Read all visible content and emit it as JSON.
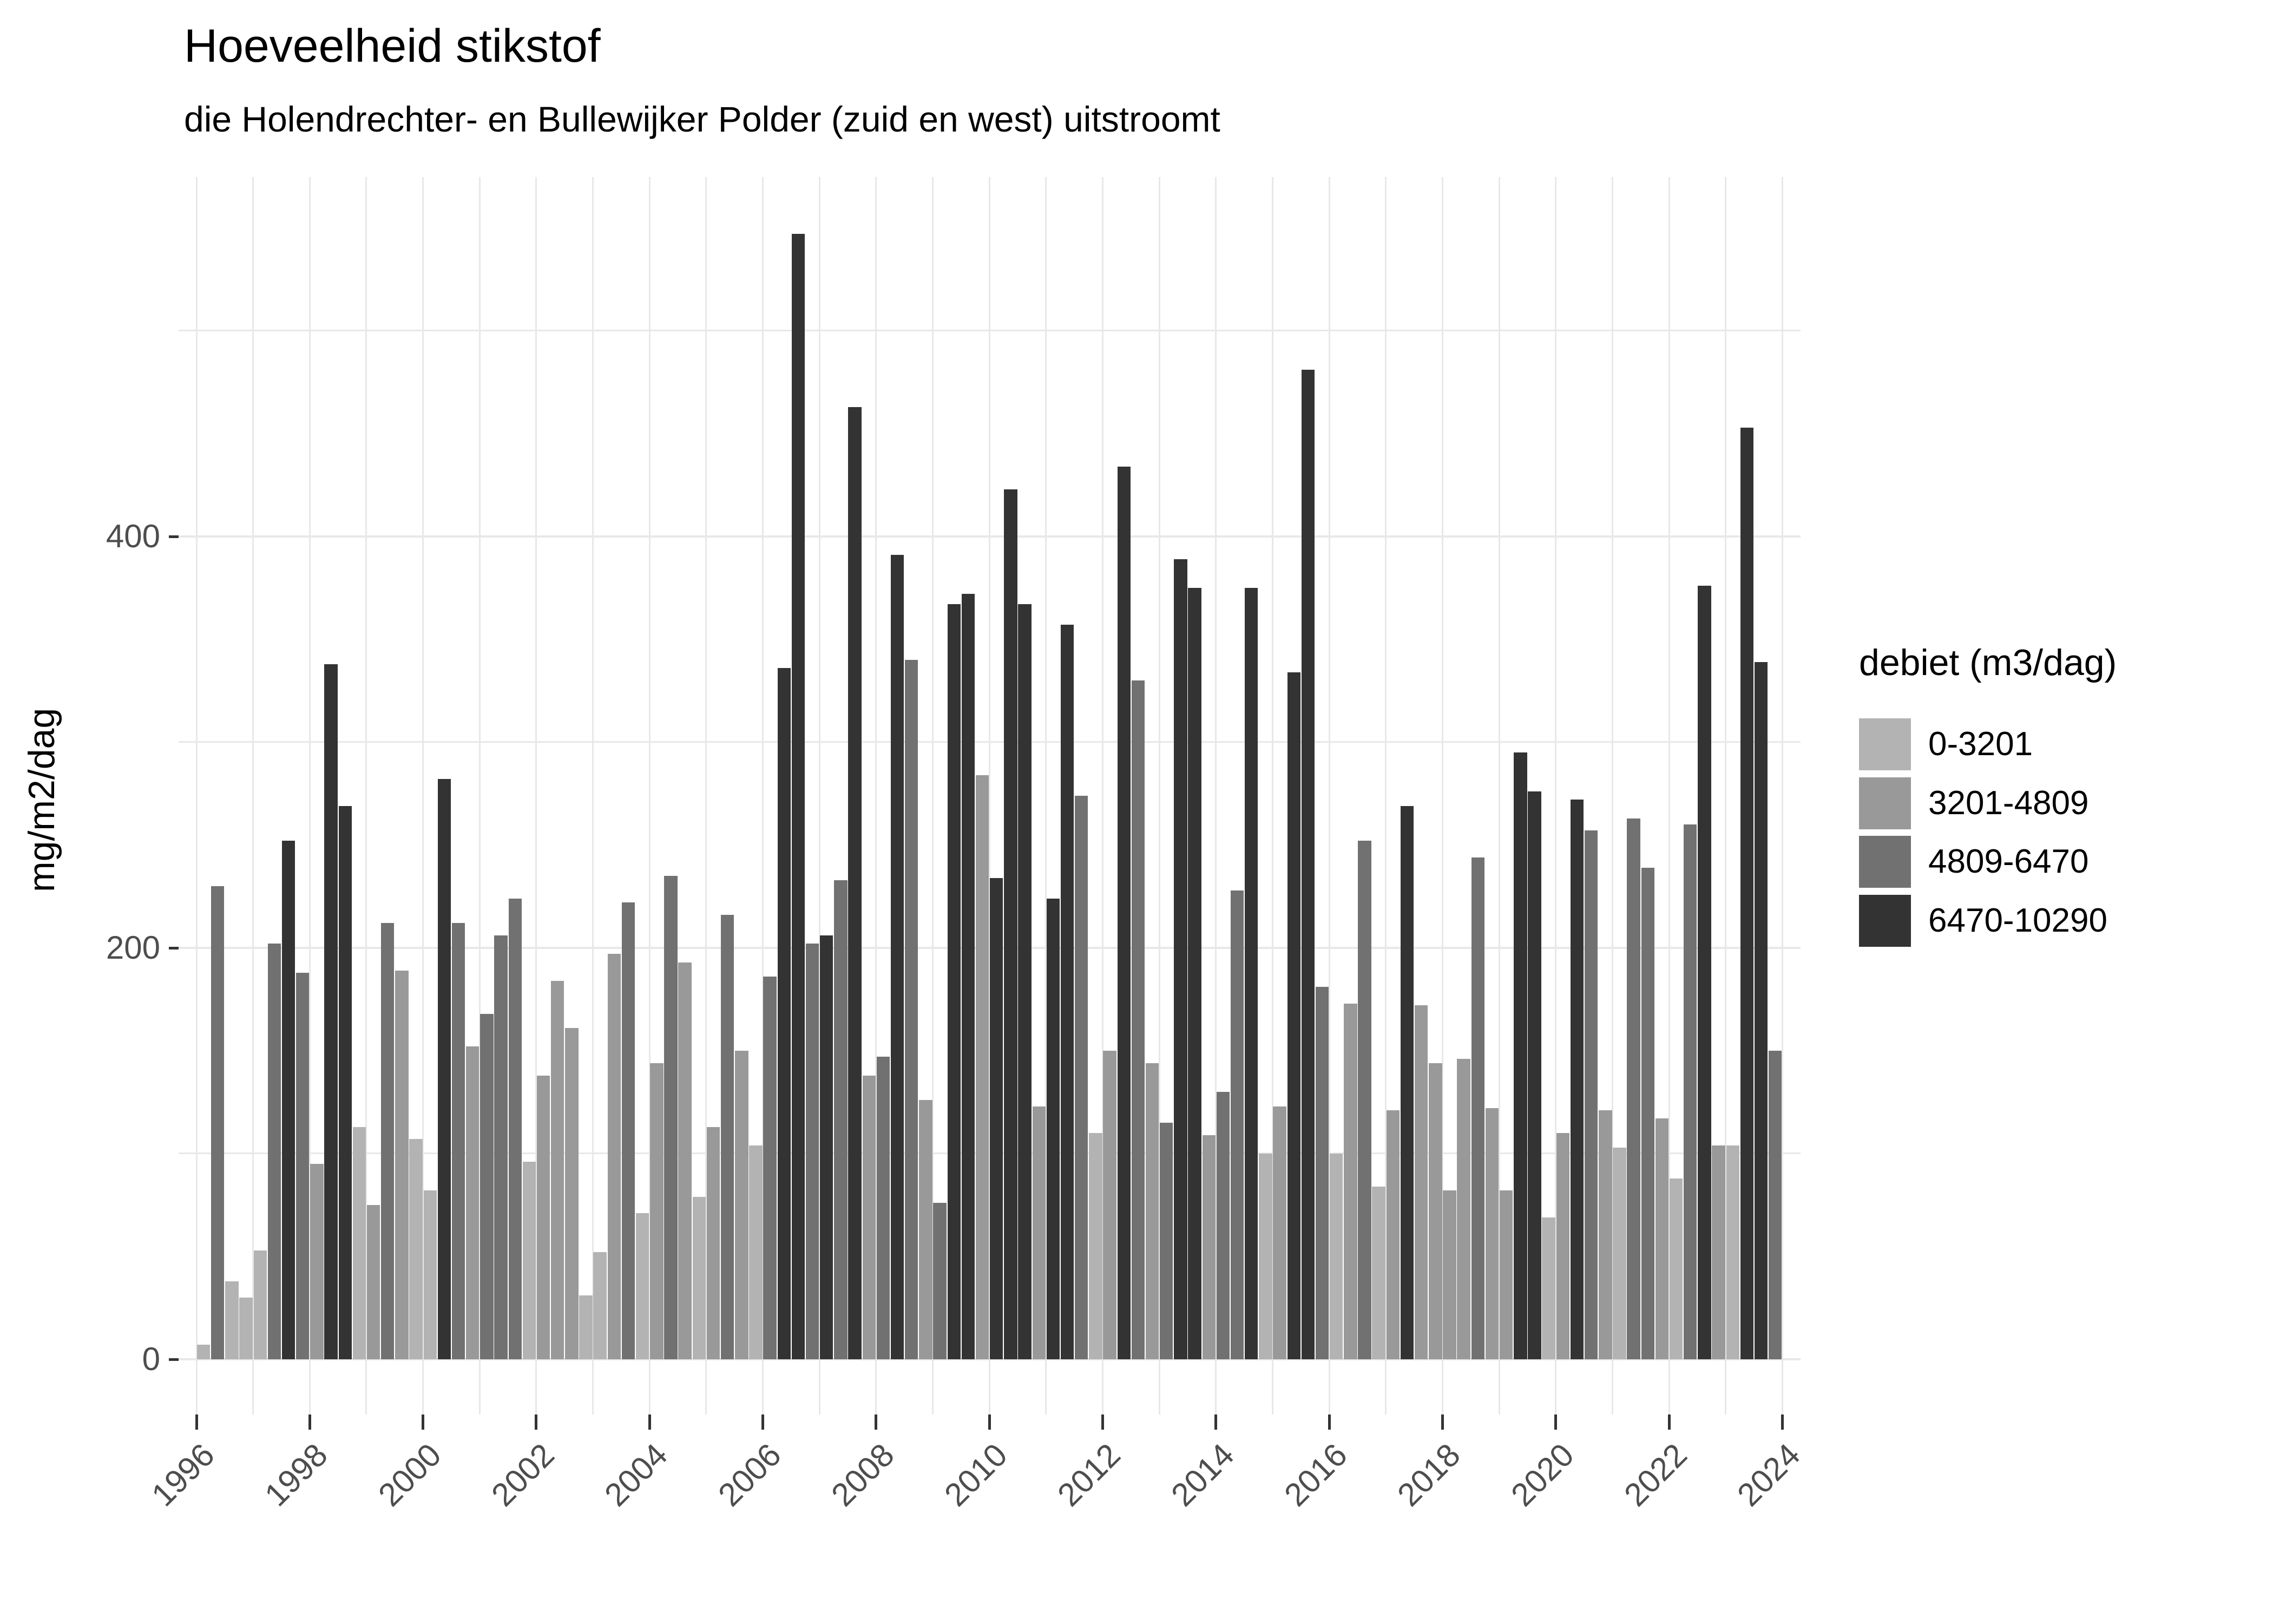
{
  "title": "Hoeveelheid stikstof",
  "subtitle": "die Holendrechter- en Bullewijker Polder (zuid en west) uitstroomt",
  "y_axis": {
    "title": "mg/m2/dag",
    "tick_labels": [
      "0",
      "200",
      "400"
    ],
    "tick_values": [
      0,
      200,
      400
    ]
  },
  "x_axis": {
    "tick_labels": [
      "1996",
      "1998",
      "2000",
      "2002",
      "2004",
      "2006",
      "2008",
      "2010",
      "2012",
      "2014",
      "2016",
      "2018",
      "2020",
      "2022",
      "2024"
    ]
  },
  "legend": {
    "title": "debiet (m3/dag)",
    "items": [
      {
        "label": "0-3201",
        "color": "#b3b3b3"
      },
      {
        "label": "3201-4809",
        "color": "#999999"
      },
      {
        "label": "4809-6470",
        "color": "#717171"
      },
      {
        "label": "6470-10290",
        "color": "#333333"
      }
    ]
  },
  "colors": {
    "background": "#ffffff",
    "gridline": "#e8e8e8",
    "tick": "#333333",
    "axis_text": "#4d4d4d",
    "text": "#000000"
  },
  "chart_data": {
    "type": "bar",
    "title": "Hoeveelheid stikstof",
    "subtitle": "die Holendrechter- en Bullewijker Polder (zuid en west) uitstroomt",
    "xlabel": "",
    "ylabel": "mg/m2/dag",
    "ylim": [
      0,
      550
    ],
    "y_gridline_step": 100,
    "x_range_years": [
      1996,
      2024
    ],
    "grid": "on",
    "legend_position": "right",
    "legend_title": "debiet (m3/dag)",
    "categories": [
      "0-3201",
      "3201-4809",
      "4809-6470",
      "6470-10290"
    ],
    "bars_note": "per year: four quarterly bars, each [category_index, value_mg_per_m2_per_dag]",
    "years": [
      {
        "year": 1996,
        "q": [
          [
            0,
            7
          ],
          [
            2,
            230
          ],
          [
            0,
            38
          ],
          [
            0,
            30
          ]
        ]
      },
      {
        "year": 1997,
        "q": [
          [
            0,
            53
          ],
          [
            2,
            202
          ],
          [
            3,
            252
          ],
          [
            2,
            188
          ]
        ]
      },
      {
        "year": 1998,
        "q": [
          [
            1,
            95
          ],
          [
            3,
            338
          ],
          [
            3,
            269
          ],
          [
            0,
            113
          ]
        ]
      },
      {
        "year": 1999,
        "q": [
          [
            1,
            75
          ],
          [
            2,
            212
          ],
          [
            1,
            189
          ],
          [
            0,
            107
          ]
        ]
      },
      {
        "year": 2000,
        "q": [
          [
            0,
            82
          ],
          [
            3,
            282
          ],
          [
            2,
            212
          ],
          [
            1,
            152
          ]
        ]
      },
      {
        "year": 2001,
        "q": [
          [
            2,
            168
          ],
          [
            2,
            206
          ],
          [
            2,
            224
          ],
          [
            0,
            96
          ]
        ]
      },
      {
        "year": 2002,
        "q": [
          [
            1,
            138
          ],
          [
            1,
            184
          ],
          [
            1,
            161
          ],
          [
            0,
            31
          ]
        ]
      },
      {
        "year": 2003,
        "q": [
          [
            0,
            52
          ],
          [
            1,
            197
          ],
          [
            2,
            222
          ],
          [
            0,
            71
          ]
        ]
      },
      {
        "year": 2004,
        "q": [
          [
            1,
            144
          ],
          [
            2,
            235
          ],
          [
            1,
            193
          ],
          [
            0,
            79
          ]
        ]
      },
      {
        "year": 2005,
        "q": [
          [
            1,
            113
          ],
          [
            2,
            216
          ],
          [
            1,
            150
          ],
          [
            0,
            104
          ]
        ]
      },
      {
        "year": 2006,
        "q": [
          [
            2,
            186
          ],
          [
            3,
            336
          ],
          [
            3,
            547
          ],
          [
            2,
            202
          ]
        ]
      },
      {
        "year": 2007,
        "q": [
          [
            3,
            206
          ],
          [
            2,
            233
          ],
          [
            3,
            463
          ],
          [
            1,
            138
          ]
        ]
      },
      {
        "year": 2008,
        "q": [
          [
            2,
            147
          ],
          [
            3,
            391
          ],
          [
            2,
            340
          ],
          [
            1,
            126
          ]
        ]
      },
      {
        "year": 2009,
        "q": [
          [
            2,
            76
          ],
          [
            3,
            367
          ],
          [
            3,
            372
          ],
          [
            1,
            284
          ]
        ]
      },
      {
        "year": 2010,
        "q": [
          [
            3,
            234
          ],
          [
            3,
            423
          ],
          [
            3,
            367
          ],
          [
            1,
            123
          ]
        ]
      },
      {
        "year": 2011,
        "q": [
          [
            3,
            224
          ],
          [
            3,
            357
          ],
          [
            2,
            274
          ],
          [
            0,
            110
          ]
        ]
      },
      {
        "year": 2012,
        "q": [
          [
            1,
            150
          ],
          [
            3,
            434
          ],
          [
            2,
            330
          ],
          [
            1,
            144
          ]
        ]
      },
      {
        "year": 2013,
        "q": [
          [
            2,
            115
          ],
          [
            3,
            389
          ],
          [
            3,
            375
          ],
          [
            1,
            109
          ]
        ]
      },
      {
        "year": 2014,
        "q": [
          [
            2,
            130
          ],
          [
            2,
            228
          ],
          [
            3,
            375
          ],
          [
            0,
            100
          ]
        ]
      },
      {
        "year": 2015,
        "q": [
          [
            1,
            123
          ],
          [
            3,
            334
          ],
          [
            3,
            481
          ],
          [
            2,
            181
          ]
        ]
      },
      {
        "year": 2016,
        "q": [
          [
            0,
            100
          ],
          [
            1,
            173
          ],
          [
            2,
            252
          ],
          [
            0,
            84
          ]
        ]
      },
      {
        "year": 2017,
        "q": [
          [
            1,
            121
          ],
          [
            3,
            269
          ],
          [
            1,
            172
          ],
          [
            1,
            144
          ]
        ]
      },
      {
        "year": 2018,
        "q": [
          [
            1,
            82
          ],
          [
            1,
            146
          ],
          [
            2,
            244
          ],
          [
            1,
            122
          ]
        ]
      },
      {
        "year": 2019,
        "q": [
          [
            1,
            82
          ],
          [
            3,
            295
          ],
          [
            3,
            276
          ],
          [
            0,
            69
          ]
        ]
      },
      {
        "year": 2020,
        "q": [
          [
            1,
            110
          ],
          [
            3,
            272
          ],
          [
            2,
            257
          ],
          [
            1,
            121
          ]
        ]
      },
      {
        "year": 2021,
        "q": [
          [
            0,
            103
          ],
          [
            2,
            263
          ],
          [
            2,
            239
          ],
          [
            1,
            117
          ]
        ]
      },
      {
        "year": 2022,
        "q": [
          [
            0,
            88
          ],
          [
            2,
            260
          ],
          [
            3,
            376
          ],
          [
            1,
            104
          ]
        ]
      },
      {
        "year": 2023,
        "q": [
          [
            0,
            104
          ],
          [
            3,
            453
          ],
          [
            3,
            339
          ],
          [
            2,
            150
          ]
        ]
      }
    ]
  }
}
